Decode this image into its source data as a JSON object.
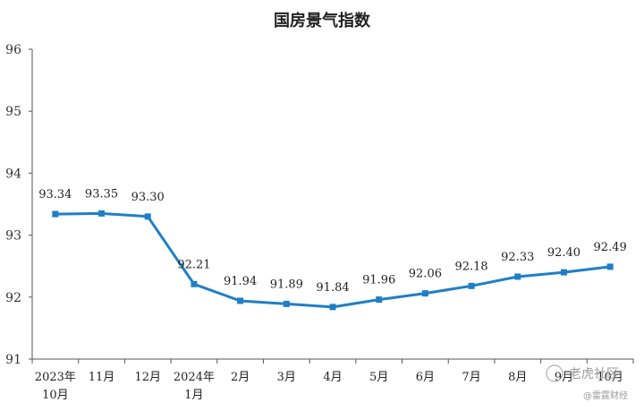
{
  "chart_data": {
    "type": "line",
    "title": "国房景气指数",
    "categories": [
      [
        "2023年",
        "10月"
      ],
      [
        "11月"
      ],
      [
        "12月"
      ],
      [
        "2024年",
        "1月"
      ],
      [
        "2月"
      ],
      [
        "3月"
      ],
      [
        "4月"
      ],
      [
        "5月"
      ],
      [
        "6月"
      ],
      [
        "7月"
      ],
      [
        "8月"
      ],
      [
        "9月"
      ],
      [
        "10月"
      ]
    ],
    "values": [
      93.34,
      93.35,
      93.3,
      92.21,
      91.94,
      91.89,
      91.84,
      91.96,
      92.06,
      92.18,
      92.33,
      92.4,
      92.49
    ],
    "data_labels": [
      "93.34",
      "93.35",
      "93.30",
      "92.21",
      "91.94",
      "91.89",
      "91.84",
      "91.96",
      "92.06",
      "92.18",
      "92.33",
      "92.40",
      "92.49"
    ],
    "yticks": [
      "91",
      "92",
      "93",
      "94",
      "95",
      "96"
    ],
    "ylim": [
      91,
      96
    ],
    "line_color": "#1f7fc6",
    "grid": false
  },
  "watermark": {
    "line1": "老虎社区",
    "line2": "@雷霆财经"
  }
}
